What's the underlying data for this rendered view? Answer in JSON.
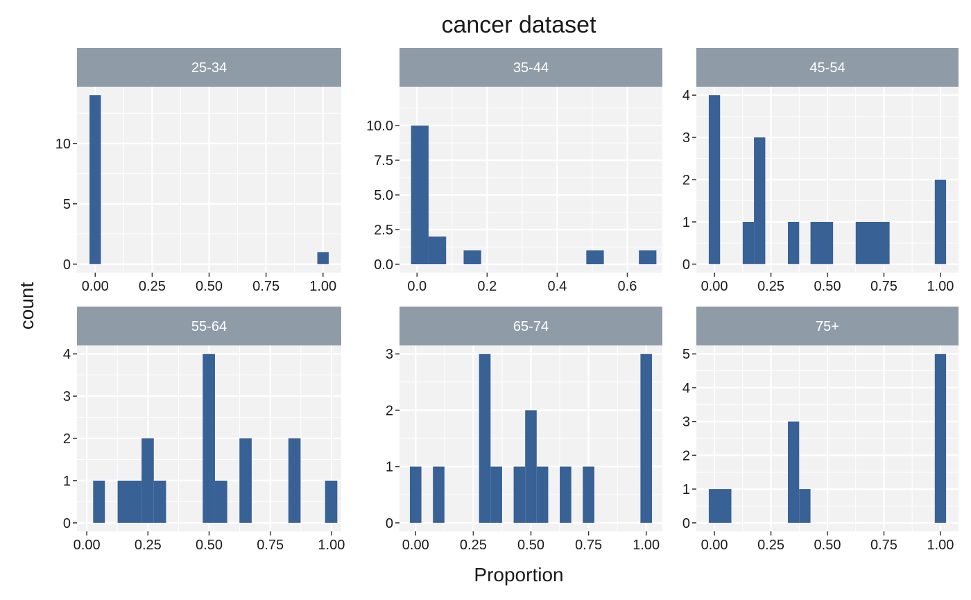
{
  "chart_data": {
    "type": "histogram",
    "title": "cancer dataset",
    "xlabel": "Proportion",
    "ylabel": "count",
    "grid": true,
    "colors": {
      "bar": "#386196",
      "panel_background": "#f2f2f2",
      "grid": "#ffffff",
      "strip": "#8f9ca8",
      "strip_text": "#ffffff"
    },
    "panels": [
      {
        "label": "25-34",
        "xlim": [
          -0.08,
          1.08
        ],
        "ylim": [
          -0.7,
          14.7
        ],
        "xticks": [
          0,
          0.25,
          0.5,
          0.75,
          1
        ],
        "xtick_labels": [
          "0.00",
          "0.25",
          "0.50",
          "0.75",
          "1.00"
        ],
        "yticks": [
          0,
          5,
          10
        ],
        "ytick_labels": [
          "0",
          "5",
          "10"
        ],
        "bars": [
          {
            "x0": -0.025,
            "x1": 0.025,
            "count": 14
          },
          {
            "x0": 0.975,
            "x1": 1.025,
            "count": 1
          }
        ]
      },
      {
        "label": "35-44",
        "xlim": [
          -0.05,
          0.7
        ],
        "ylim": [
          -0.6,
          12.8
        ],
        "xticks": [
          0,
          0.2,
          0.4,
          0.6
        ],
        "xtick_labels": [
          "0.0",
          "0.2",
          "0.4",
          "0.6"
        ],
        "yticks": [
          0,
          2.5,
          5,
          7.5,
          10
        ],
        "ytick_labels": [
          "0.0",
          "2.5",
          "5.0",
          "7.5",
          "10.0"
        ],
        "bars": [
          {
            "x0": -0.017,
            "x1": 0.033,
            "count": 10
          },
          {
            "x0": 0.033,
            "x1": 0.083,
            "count": 2
          },
          {
            "x0": 0.133,
            "x1": 0.183,
            "count": 1
          },
          {
            "x0": 0.483,
            "x1": 0.533,
            "count": 1
          },
          {
            "x0": 0.633,
            "x1": 0.683,
            "count": 1
          }
        ]
      },
      {
        "label": "45-54",
        "xlim": [
          -0.08,
          1.08
        ],
        "ylim": [
          -0.2,
          4.2
        ],
        "xticks": [
          0,
          0.25,
          0.5,
          0.75,
          1
        ],
        "xtick_labels": [
          "0.00",
          "0.25",
          "0.50",
          "0.75",
          "1.00"
        ],
        "yticks": [
          0,
          1,
          2,
          3,
          4
        ],
        "ytick_labels": [
          "0",
          "1",
          "2",
          "3",
          "4"
        ],
        "bars": [
          {
            "x0": -0.025,
            "x1": 0.025,
            "count": 4
          },
          {
            "x0": 0.125,
            "x1": 0.175,
            "count": 1
          },
          {
            "x0": 0.175,
            "x1": 0.225,
            "count": 3
          },
          {
            "x0": 0.325,
            "x1": 0.375,
            "count": 1
          },
          {
            "x0": 0.425,
            "x1": 0.525,
            "count": 1
          },
          {
            "x0": 0.625,
            "x1": 0.775,
            "count": 1
          },
          {
            "x0": 0.975,
            "x1": 1.025,
            "count": 2
          }
        ]
      },
      {
        "label": "55-64",
        "xlim": [
          -0.04,
          1.04
        ],
        "ylim": [
          -0.2,
          4.2
        ],
        "xticks": [
          0,
          0.25,
          0.5,
          0.75,
          1
        ],
        "xtick_labels": [
          "0.00",
          "0.25",
          "0.50",
          "0.75",
          "1.00"
        ],
        "yticks": [
          0,
          1,
          2,
          3,
          4
        ],
        "ytick_labels": [
          "0",
          "1",
          "2",
          "3",
          "4"
        ],
        "bars": [
          {
            "x0": 0.026,
            "x1": 0.074,
            "count": 1
          },
          {
            "x0": 0.126,
            "x1": 0.224,
            "count": 1
          },
          {
            "x0": 0.224,
            "x1": 0.274,
            "count": 2
          },
          {
            "x0": 0.274,
            "x1": 0.324,
            "count": 1
          },
          {
            "x0": 0.474,
            "x1": 0.524,
            "count": 4
          },
          {
            "x0": 0.524,
            "x1": 0.574,
            "count": 1
          },
          {
            "x0": 0.624,
            "x1": 0.674,
            "count": 2
          },
          {
            "x0": 0.824,
            "x1": 0.874,
            "count": 2
          },
          {
            "x0": 0.974,
            "x1": 1.024,
            "count": 1
          }
        ]
      },
      {
        "label": "65-74",
        "xlim": [
          -0.07,
          1.07
        ],
        "ylim": [
          -0.15,
          3.15
        ],
        "xticks": [
          0,
          0.25,
          0.5,
          0.75,
          1
        ],
        "xtick_labels": [
          "0.00",
          "0.25",
          "0.50",
          "0.75",
          "1.00"
        ],
        "yticks": [
          0,
          1,
          2,
          3
        ],
        "ytick_labels": [
          "0",
          "1",
          "2",
          "3"
        ],
        "bars": [
          {
            "x0": -0.025,
            "x1": 0.025,
            "count": 1
          },
          {
            "x0": 0.075,
            "x1": 0.125,
            "count": 1
          },
          {
            "x0": 0.275,
            "x1": 0.325,
            "count": 3
          },
          {
            "x0": 0.325,
            "x1": 0.375,
            "count": 1
          },
          {
            "x0": 0.425,
            "x1": 0.475,
            "count": 1
          },
          {
            "x0": 0.475,
            "x1": 0.525,
            "count": 2
          },
          {
            "x0": 0.525,
            "x1": 0.575,
            "count": 1
          },
          {
            "x0": 0.625,
            "x1": 0.675,
            "count": 1
          },
          {
            "x0": 0.725,
            "x1": 0.775,
            "count": 1
          },
          {
            "x0": 0.975,
            "x1": 1.025,
            "count": 3
          }
        ]
      },
      {
        "label": "75+",
        "xlim": [
          -0.08,
          1.08
        ],
        "ylim": [
          -0.25,
          5.25
        ],
        "xticks": [
          0,
          0.25,
          0.5,
          0.75,
          1
        ],
        "xtick_labels": [
          "0.00",
          "0.25",
          "0.50",
          "0.75",
          "1.00"
        ],
        "yticks": [
          0,
          1,
          2,
          3,
          4,
          5
        ],
        "ytick_labels": [
          "0",
          "1",
          "2",
          "3",
          "4",
          "5"
        ],
        "bars": [
          {
            "x0": -0.025,
            "x1": 0.075,
            "count": 1
          },
          {
            "x0": 0.325,
            "x1": 0.375,
            "count": 3
          },
          {
            "x0": 0.375,
            "x1": 0.425,
            "count": 1
          },
          {
            "x0": 0.975,
            "x1": 1.025,
            "count": 5
          }
        ]
      }
    ]
  }
}
